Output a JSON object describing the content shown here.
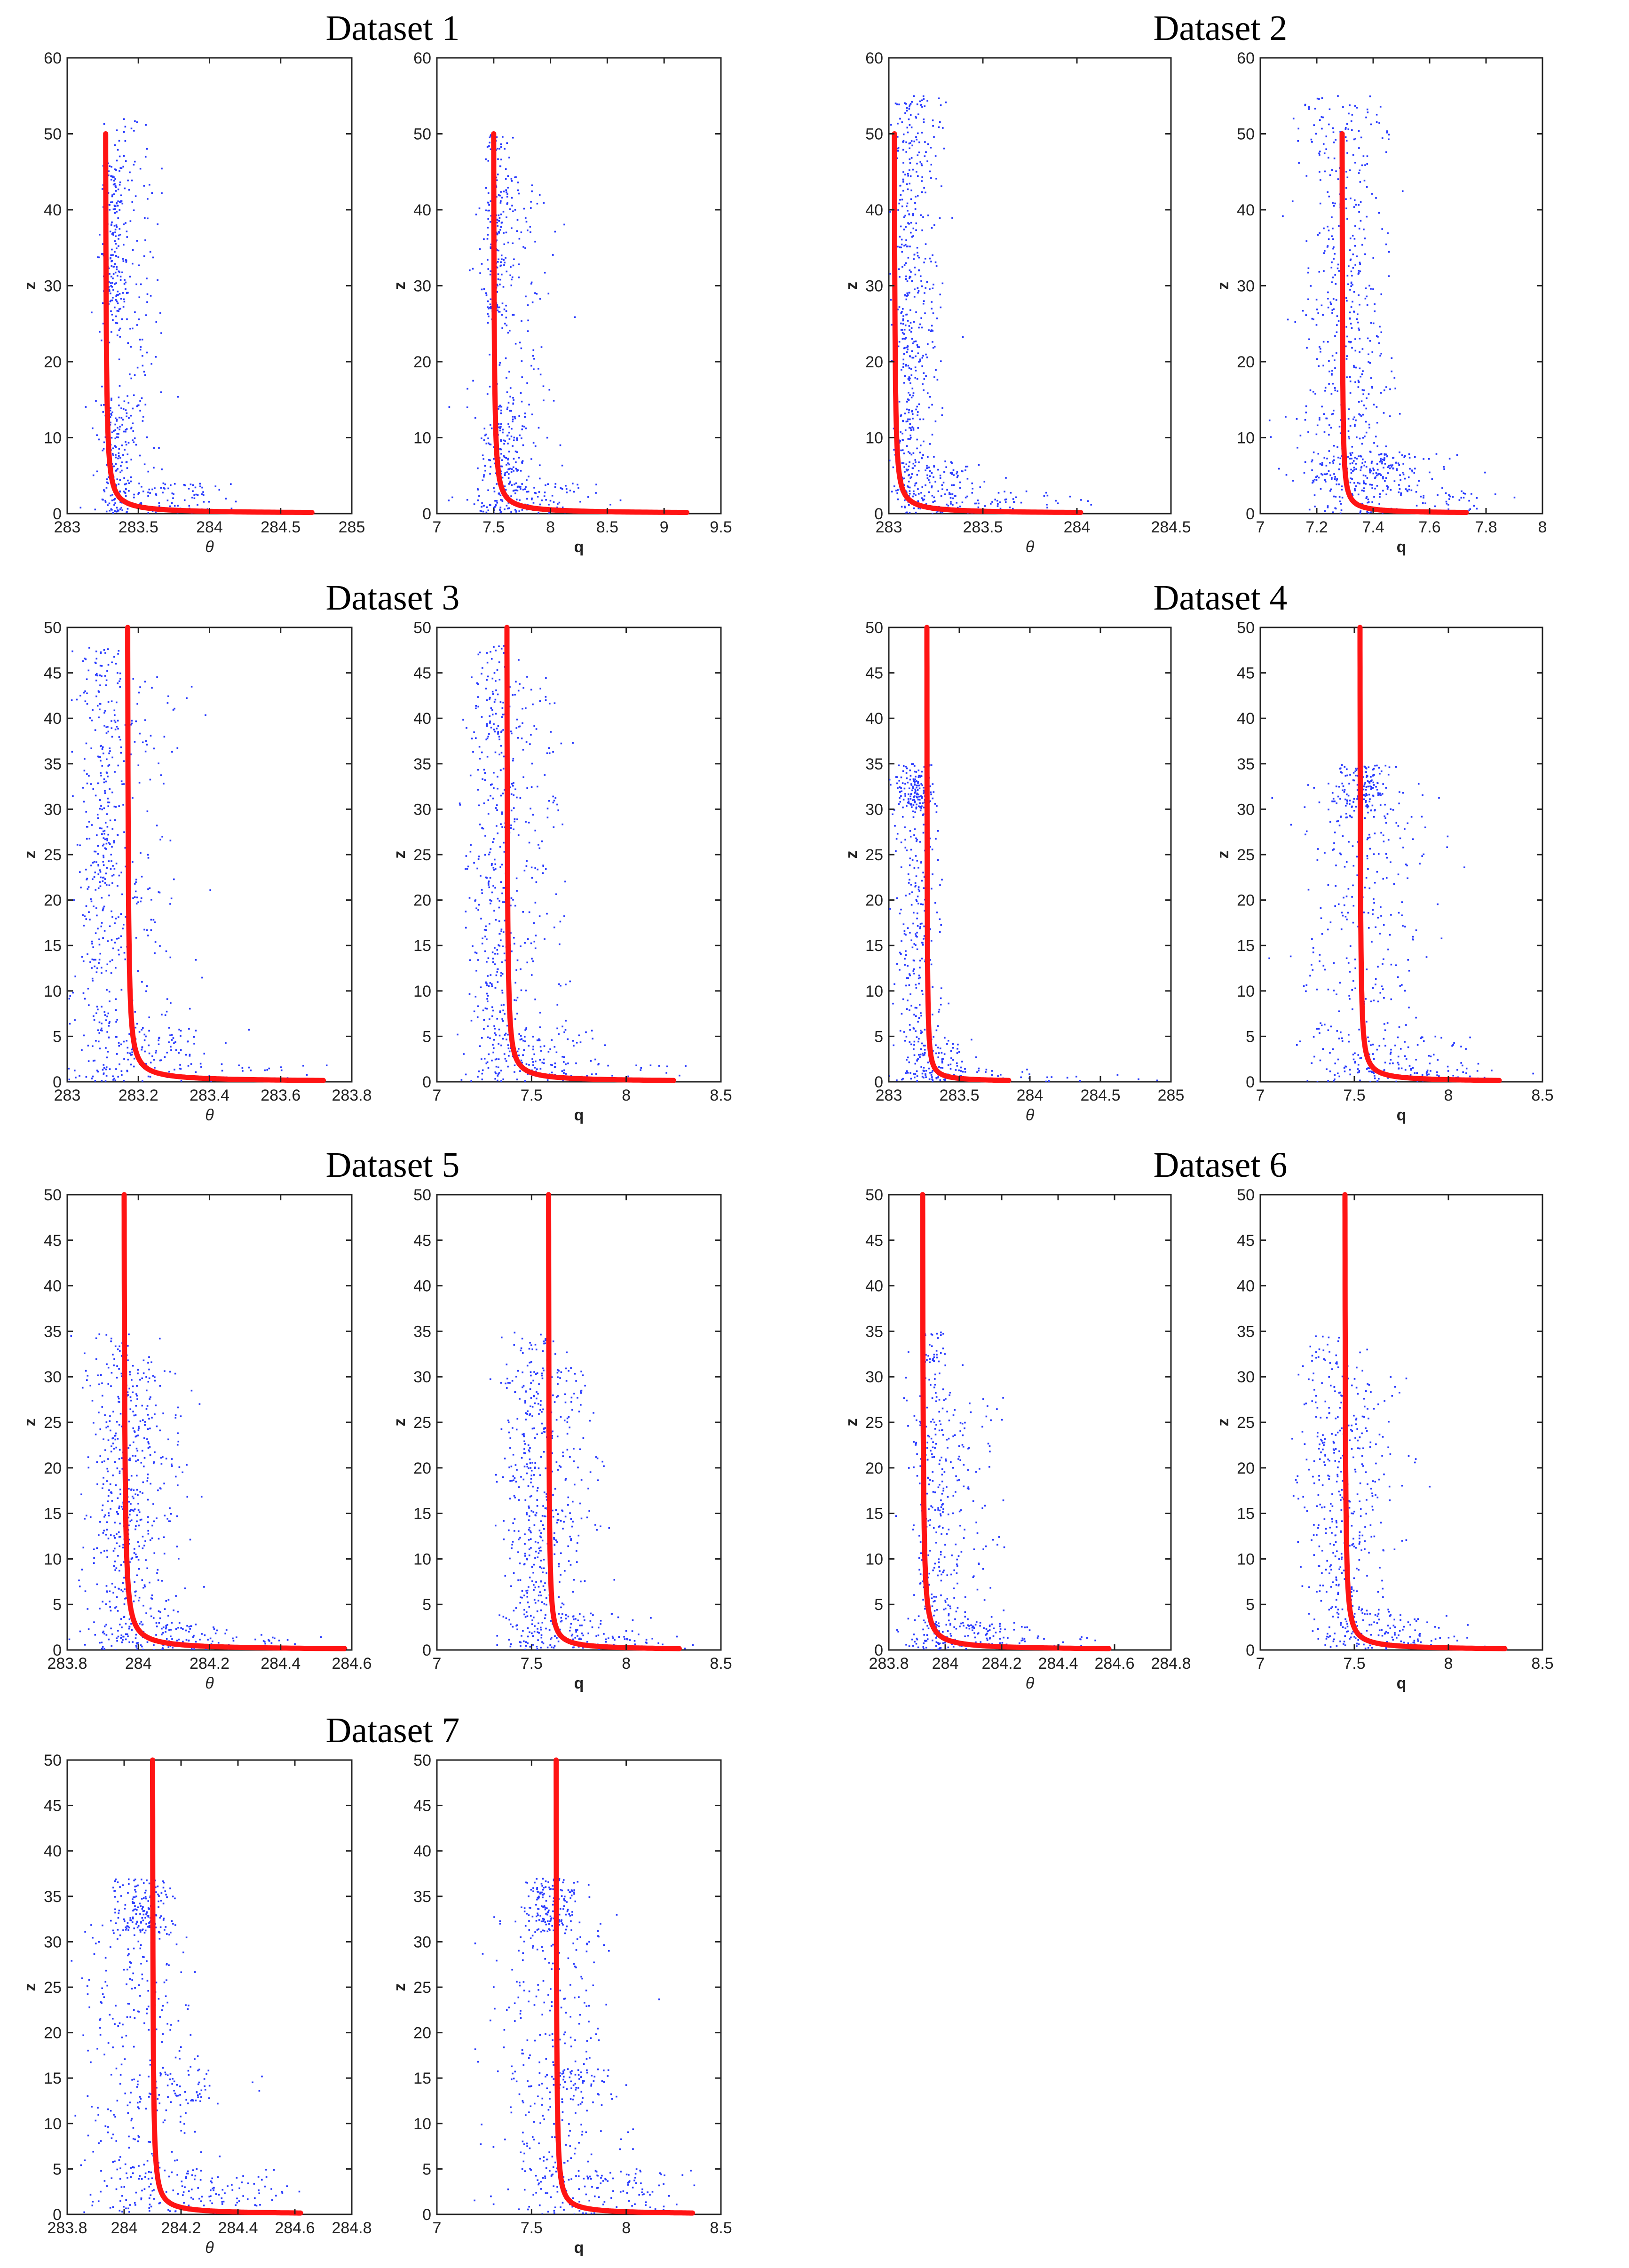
{
  "figure": {
    "background": "#ffffff",
    "point_color": "#2a3cff",
    "fit_color": "#ff1414"
  },
  "chart_data": [
    {
      "dataset": "Dataset 1",
      "title": "Dataset 1",
      "type": "scatter",
      "var": "theta",
      "xlabel": "θ",
      "ylabel": "z",
      "xlim": [
        283,
        285
      ],
      "ylim": [
        0,
        60
      ],
      "xticks": [
        283,
        283.5,
        284,
        284.5,
        285
      ],
      "xticklabels": [
        "283",
        "283.5",
        "284",
        "284.5",
        "285"
      ],
      "yticks": [
        0,
        10,
        20,
        30,
        40,
        50,
        60
      ],
      "fit": {
        "x0": 283.27,
        "x_end": 284.72,
        "z_top": 50,
        "z_end": 0.15
      },
      "clusters": [
        {
          "xc": 283.33,
          "sx": 0.04,
          "z0": 25,
          "z1": 46,
          "n": 170
        },
        {
          "xc": 283.42,
          "sx": 0.12,
          "z0": 0,
          "z1": 52,
          "n": 200
        },
        {
          "xc": 283.35,
          "sx": 0.06,
          "z0": 0,
          "z1": 15,
          "n": 160
        },
        {
          "xc": 283.7,
          "sx": 0.25,
          "z0": 0,
          "z1": 4,
          "n": 90
        }
      ]
    },
    {
      "dataset": "Dataset 1",
      "type": "scatter",
      "var": "q",
      "xlabel": "q",
      "ylabel": "z",
      "xlim": [
        7,
        9.5
      ],
      "ylim": [
        0,
        60
      ],
      "xticks": [
        7,
        7.5,
        8,
        8.5,
        9,
        9.5
      ],
      "xticklabels": [
        "7",
        "7.5",
        "8",
        "8.5",
        "9",
        "9.5"
      ],
      "yticks": [
        0,
        10,
        20,
        30,
        40,
        50,
        60
      ],
      "fit": {
        "x0": 7.5,
        "x_end": 9.2,
        "z_top": 50,
        "z_end": 0.15
      },
      "clusters": [
        {
          "xc": 7.52,
          "sx": 0.06,
          "z0": 25,
          "z1": 50,
          "n": 170
        },
        {
          "xc": 7.65,
          "sx": 0.18,
          "z0": 0,
          "z1": 45,
          "n": 200
        },
        {
          "xc": 7.6,
          "sx": 0.1,
          "z0": 0,
          "z1": 15,
          "n": 160
        },
        {
          "xc": 7.9,
          "sx": 0.3,
          "z0": 0,
          "z1": 4,
          "n": 90
        }
      ]
    },
    {
      "dataset": "Dataset 2",
      "title": "Dataset 2",
      "type": "scatter",
      "var": "theta",
      "xlabel": "θ",
      "ylabel": "z",
      "xlim": [
        283,
        284.5
      ],
      "ylim": [
        0,
        60
      ],
      "xticks": [
        283,
        283.5,
        284,
        284.5
      ],
      "xticklabels": [
        "283",
        "283.5",
        "284",
        "284.5"
      ],
      "yticks": [
        0,
        10,
        20,
        30,
        40,
        50,
        60
      ],
      "fit": {
        "x0": 283.03,
        "x_end": 284.02,
        "z_top": 50,
        "z_end": 0.15
      },
      "clusters": [
        {
          "xc": 283.1,
          "sx": 0.04,
          "z0": 0,
          "z1": 55,
          "n": 320
        },
        {
          "xc": 283.18,
          "sx": 0.06,
          "z0": 0,
          "z1": 55,
          "n": 200
        },
        {
          "xc": 283.25,
          "sx": 0.15,
          "z0": 0,
          "z1": 7,
          "n": 140
        },
        {
          "xc": 283.6,
          "sx": 0.2,
          "z0": 0,
          "z1": 3,
          "n": 50
        }
      ]
    },
    {
      "dataset": "Dataset 2",
      "type": "scatter",
      "var": "q",
      "xlabel": "q",
      "ylabel": "z",
      "xlim": [
        7,
        8
      ],
      "ylim": [
        0,
        60
      ],
      "xticks": [
        7,
        7.2,
        7.4,
        7.6,
        7.8,
        8
      ],
      "xticklabels": [
        "7",
        "7.2",
        "7.4",
        "7.6",
        "7.8",
        "8"
      ],
      "yticks": [
        0,
        10,
        20,
        30,
        40,
        50,
        60
      ],
      "fit": {
        "x0": 7.29,
        "x_end": 7.73,
        "z_top": 50,
        "z_end": 0.15
      },
      "clusters": [
        {
          "xc": 7.28,
          "sx": 0.08,
          "z0": 0,
          "z1": 55,
          "n": 380
        },
        {
          "xc": 7.35,
          "sx": 0.06,
          "z0": 0,
          "z1": 55,
          "n": 150
        },
        {
          "xc": 7.4,
          "sx": 0.12,
          "z0": 3,
          "z1": 8,
          "n": 180
        },
        {
          "xc": 7.6,
          "sx": 0.15,
          "z0": 0,
          "z1": 3,
          "n": 60
        }
      ]
    },
    {
      "dataset": "Dataset 3",
      "title": "Dataset 3",
      "type": "scatter",
      "var": "theta",
      "xlabel": "θ",
      "ylabel": "z",
      "xlim": [
        283,
        283.8
      ],
      "ylim": [
        0,
        50
      ],
      "xticks": [
        283,
        283.2,
        283.4,
        283.6,
        283.8
      ],
      "xticklabels": [
        "283",
        "283.2",
        "283.4",
        "283.6",
        "283.8"
      ],
      "yticks": [
        0,
        5,
        10,
        15,
        20,
        25,
        30,
        35,
        40,
        45,
        50
      ],
      "fit": {
        "x0": 283.17,
        "x_end": 283.72,
        "z_top": 50,
        "z_end": 0.15
      },
      "clusters": [
        {
          "xc": 283.1,
          "sx": 0.04,
          "z0": 0,
          "z1": 48,
          "n": 380
        },
        {
          "xc": 283.2,
          "sx": 0.08,
          "z0": 0,
          "z1": 45,
          "n": 170
        },
        {
          "xc": 283.25,
          "sx": 0.1,
          "z0": 0,
          "z1": 6,
          "n": 90
        },
        {
          "xc": 283.5,
          "sx": 0.15,
          "z0": 0,
          "z1": 2,
          "n": 30
        }
      ]
    },
    {
      "dataset": "Dataset 3",
      "type": "scatter",
      "var": "q",
      "xlabel": "q",
      "ylabel": "z",
      "xlim": [
        7,
        8.5
      ],
      "ylim": [
        0,
        50
      ],
      "xticks": [
        7,
        7.5,
        8,
        8.5
      ],
      "xticklabels": [
        "7",
        "7.5",
        "8",
        "8.5"
      ],
      "yticks": [
        0,
        5,
        10,
        15,
        20,
        25,
        30,
        35,
        40,
        45,
        50
      ],
      "fit": {
        "x0": 7.37,
        "x_end": 8.25,
        "z_top": 50,
        "z_end": 0.15
      },
      "clusters": [
        {
          "xc": 7.3,
          "sx": 0.07,
          "z0": 0,
          "z1": 48,
          "n": 320
        },
        {
          "xc": 7.45,
          "sx": 0.12,
          "z0": 0,
          "z1": 45,
          "n": 220
        },
        {
          "xc": 7.55,
          "sx": 0.15,
          "z0": 0,
          "z1": 6,
          "n": 100
        },
        {
          "xc": 7.9,
          "sx": 0.2,
          "z0": 0,
          "z1": 2,
          "n": 30
        }
      ]
    },
    {
      "dataset": "Dataset 4",
      "title": "Dataset 4",
      "type": "scatter",
      "var": "theta",
      "xlabel": "θ",
      "ylabel": "z",
      "xlim": [
        283,
        285
      ],
      "ylim": [
        0,
        50
      ],
      "xticks": [
        283,
        283.5,
        284,
        284.5,
        285
      ],
      "xticklabels": [
        "283",
        "283.5",
        "284",
        "284.5",
        "285"
      ],
      "yticks": [
        0,
        5,
        10,
        15,
        20,
        25,
        30,
        35,
        40,
        45,
        50
      ],
      "fit": {
        "x0": 283.27,
        "x_end": 283.85,
        "z_top": 50,
        "z_end": 0.15
      },
      "clusters": [
        {
          "xc": 283.18,
          "sx": 0.06,
          "z0": 30,
          "z1": 35,
          "n": 120
        },
        {
          "xc": 283.2,
          "sx": 0.08,
          "z0": 0,
          "z1": 34,
          "n": 300
        },
        {
          "xc": 283.35,
          "sx": 0.12,
          "z0": 0,
          "z1": 5,
          "n": 90
        },
        {
          "xc": 283.9,
          "sx": 0.4,
          "z0": 0,
          "z1": 1.5,
          "n": 40
        }
      ]
    },
    {
      "dataset": "Dataset 4",
      "type": "scatter",
      "var": "q",
      "xlabel": "q",
      "ylabel": "z",
      "xlim": [
        7,
        8.5
      ],
      "ylim": [
        0,
        50
      ],
      "xticks": [
        7,
        7.5,
        8,
        8.5
      ],
      "xticklabels": [
        "7",
        "7.5",
        "8",
        "8.5"
      ],
      "yticks": [
        0,
        5,
        10,
        15,
        20,
        25,
        30,
        35,
        40,
        45,
        50
      ],
      "fit": {
        "x0": 7.53,
        "x_end": 8.27,
        "z_top": 50,
        "z_end": 0.15
      },
      "clusters": [
        {
          "xc": 7.55,
          "sx": 0.08,
          "z0": 29,
          "z1": 35,
          "n": 150
        },
        {
          "xc": 7.55,
          "sx": 0.18,
          "z0": 0,
          "z1": 33,
          "n": 300
        },
        {
          "xc": 7.7,
          "sx": 0.2,
          "z0": 0,
          "z1": 5,
          "n": 100
        },
        {
          "xc": 7.95,
          "sx": 0.2,
          "z0": 0,
          "z1": 1.5,
          "n": 30
        }
      ]
    },
    {
      "dataset": "Dataset 5",
      "title": "Dataset 5",
      "type": "scatter",
      "var": "theta",
      "xlabel": "θ",
      "ylabel": "z",
      "xlim": [
        283.8,
        284.6
      ],
      "ylim": [
        0,
        50
      ],
      "xticks": [
        283.8,
        284,
        284.2,
        284.4,
        284.6
      ],
      "xticklabels": [
        "283.8",
        "284",
        "284.2",
        "284.4",
        "284.6"
      ],
      "yticks": [
        0,
        5,
        10,
        15,
        20,
        25,
        30,
        35,
        40,
        45,
        50
      ],
      "fit": {
        "x0": 283.96,
        "x_end": 284.58,
        "z_top": 50,
        "z_end": 0.15
      },
      "clusters": [
        {
          "xc": 283.94,
          "sx": 0.05,
          "z0": 0,
          "z1": 35,
          "n": 330
        },
        {
          "xc": 284.03,
          "sx": 0.06,
          "z0": 0,
          "z1": 31,
          "n": 220
        },
        {
          "xc": 284.1,
          "sx": 0.1,
          "z0": 0,
          "z1": 3,
          "n": 90
        },
        {
          "xc": 284.35,
          "sx": 0.1,
          "z0": 0,
          "z1": 1.5,
          "n": 25
        }
      ]
    },
    {
      "dataset": "Dataset 5",
      "type": "scatter",
      "var": "q",
      "xlabel": "q",
      "ylabel": "z",
      "xlim": [
        7,
        8.5
      ],
      "ylim": [
        0,
        50
      ],
      "xticks": [
        7,
        7.5,
        8,
        8.5
      ],
      "xticklabels": [
        "7",
        "7.5",
        "8",
        "8.5"
      ],
      "yticks": [
        0,
        5,
        10,
        15,
        20,
        25,
        30,
        35,
        40,
        45,
        50
      ],
      "fit": {
        "x0": 7.59,
        "x_end": 8.28,
        "z_top": 50,
        "z_end": 0.15
      },
      "clusters": [
        {
          "xc": 7.5,
          "sx": 0.08,
          "z0": 0,
          "z1": 35,
          "n": 330
        },
        {
          "xc": 7.65,
          "sx": 0.1,
          "z0": 0,
          "z1": 31,
          "n": 200
        },
        {
          "xc": 7.75,
          "sx": 0.15,
          "z0": 0,
          "z1": 4,
          "n": 90
        },
        {
          "xc": 8.0,
          "sx": 0.15,
          "z0": 0,
          "z1": 1.5,
          "n": 25
        }
      ]
    },
    {
      "dataset": "Dataset 6",
      "title": "Dataset 6",
      "type": "scatter",
      "var": "theta",
      "xlabel": "θ",
      "ylabel": "z",
      "xlim": [
        283.8,
        284.8
      ],
      "ylim": [
        0,
        50
      ],
      "xticks": [
        283.8,
        284,
        284.2,
        284.4,
        284.6,
        284.8
      ],
      "xticklabels": [
        "283.8",
        "284",
        "284.2",
        "284.4",
        "284.6",
        "284.8"
      ],
      "yticks": [
        0,
        5,
        10,
        15,
        20,
        25,
        30,
        35,
        40,
        45,
        50
      ],
      "fit": {
        "x0": 283.92,
        "x_end": 284.58,
        "z_top": 50,
        "z_end": 0.15
      },
      "clusters": [
        {
          "xc": 283.95,
          "sx": 0.04,
          "z0": 0,
          "z1": 35,
          "n": 280
        },
        {
          "xc": 284.05,
          "sx": 0.08,
          "z0": 0,
          "z1": 28,
          "n": 150
        },
        {
          "xc": 284.1,
          "sx": 0.1,
          "z0": 0,
          "z1": 3,
          "n": 90
        },
        {
          "xc": 284.35,
          "sx": 0.1,
          "z0": 0,
          "z1": 1.5,
          "n": 20
        }
      ]
    },
    {
      "dataset": "Dataset 6",
      "type": "scatter",
      "var": "q",
      "xlabel": "q",
      "ylabel": "z",
      "xlim": [
        7,
        8.5
      ],
      "ylim": [
        0,
        50
      ],
      "xticks": [
        7,
        7.5,
        8,
        8.5
      ],
      "xticklabels": [
        "7",
        "7.5",
        "8",
        "8.5"
      ],
      "yticks": [
        0,
        5,
        10,
        15,
        20,
        25,
        30,
        35,
        40,
        45,
        50
      ],
      "fit": {
        "x0": 7.45,
        "x_end": 8.3,
        "z_top": 50,
        "z_end": 0.15
      },
      "clusters": [
        {
          "xc": 7.4,
          "sx": 0.09,
          "z0": 0,
          "z1": 35,
          "n": 280
        },
        {
          "xc": 7.55,
          "sx": 0.12,
          "z0": 0,
          "z1": 30,
          "n": 170
        },
        {
          "xc": 7.7,
          "sx": 0.15,
          "z0": 0,
          "z1": 4,
          "n": 80
        },
        {
          "xc": 7.95,
          "sx": 0.15,
          "z0": 0,
          "z1": 1.5,
          "n": 20
        }
      ]
    },
    {
      "dataset": "Dataset 7",
      "title": "Dataset 7",
      "type": "scatter",
      "var": "theta",
      "xlabel": "θ",
      "ylabel": "z",
      "xlim": [
        283.8,
        284.8
      ],
      "ylim": [
        0,
        50
      ],
      "xticks": [
        283.8,
        284,
        284.2,
        284.4,
        284.6,
        284.8
      ],
      "xticklabels": [
        "283.8",
        "284",
        "284.2",
        "284.4",
        "284.6",
        "284.8"
      ],
      "yticks": [
        0,
        5,
        10,
        15,
        20,
        25,
        30,
        35,
        40,
        45,
        50
      ],
      "fit": {
        "x0": 284.1,
        "x_end": 284.62,
        "z_top": 50,
        "z_end": 0.15
      },
      "clusters": [
        {
          "xc": 284.07,
          "sx": 0.05,
          "z0": 31,
          "z1": 37,
          "n": 160
        },
        {
          "xc": 284.05,
          "sx": 0.1,
          "z0": 0,
          "z1": 33,
          "n": 320
        },
        {
          "xc": 284.2,
          "sx": 0.1,
          "z0": 12,
          "z1": 16,
          "n": 60
        },
        {
          "xc": 284.3,
          "sx": 0.15,
          "z0": 0,
          "z1": 5,
          "n": 110
        }
      ]
    },
    {
      "dataset": "Dataset 7",
      "type": "scatter",
      "var": "q",
      "xlabel": "q",
      "ylabel": "z",
      "xlim": [
        7,
        8.5
      ],
      "ylim": [
        0,
        50
      ],
      "xticks": [
        7,
        7.5,
        8,
        8.5
      ],
      "xticklabels": [
        "7",
        "7.5",
        "8",
        "8.5"
      ],
      "yticks": [
        0,
        5,
        10,
        15,
        20,
        25,
        30,
        35,
        40,
        45,
        50
      ],
      "fit": {
        "x0": 7.63,
        "x_end": 8.35,
        "z_top": 50,
        "z_end": 0.15
      },
      "clusters": [
        {
          "xc": 7.6,
          "sx": 0.08,
          "z0": 31,
          "z1": 37,
          "n": 160
        },
        {
          "xc": 7.6,
          "sx": 0.15,
          "z0": 0,
          "z1": 33,
          "n": 320
        },
        {
          "xc": 7.75,
          "sx": 0.1,
          "z0": 12,
          "z1": 16,
          "n": 60
        },
        {
          "xc": 7.95,
          "sx": 0.2,
          "z0": 0,
          "z1": 5,
          "n": 110
        }
      ]
    }
  ]
}
